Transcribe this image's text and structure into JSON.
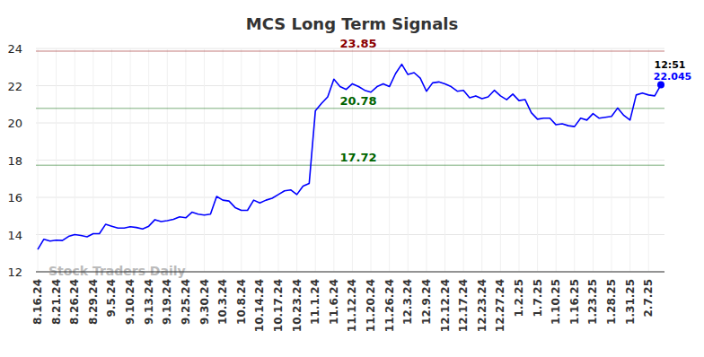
{
  "chart_data": {
    "type": "line",
    "title": "MCS Long Term Signals",
    "watermark": "Stock Traders Daily",
    "categories": [
      "8.16.24",
      null,
      null,
      "8.21.24",
      null,
      null,
      "8.26.24",
      null,
      null,
      "8.29.24",
      null,
      null,
      "9.5.24",
      null,
      null,
      "9.10.24",
      null,
      null,
      "9.13.24",
      null,
      null,
      "9.19.24",
      null,
      null,
      "9.25.24",
      null,
      null,
      "9.30.24",
      null,
      null,
      "10.3.24",
      null,
      null,
      "10.8.24",
      null,
      null,
      "10.14.24",
      null,
      null,
      "10.17.24",
      null,
      null,
      "10.23.24",
      null,
      null,
      "11.1.24",
      null,
      null,
      "11.6.24",
      null,
      null,
      "11.12.24",
      null,
      null,
      "11.20.24",
      null,
      null,
      "11.26.24",
      null,
      null,
      "12.3.24",
      null,
      null,
      "12.9.24",
      null,
      null,
      "12.12.24",
      null,
      null,
      "12.17.24",
      null,
      null,
      "12.23.24",
      null,
      null,
      "12.27.24",
      null,
      null,
      "1.2.25",
      null,
      null,
      "1.7.25",
      null,
      null,
      "1.10.25",
      null,
      null,
      "1.16.25",
      null,
      null,
      "1.23.25",
      null,
      null,
      "1.28.25",
      null,
      null,
      "1.31.25",
      null,
      null,
      "2.7.25",
      null,
      null
    ],
    "series": [
      {
        "color": "#0000ff",
        "values": [
          13.2,
          13.75,
          13.65,
          13.7,
          13.68,
          13.9,
          14.0,
          13.95,
          13.88,
          14.05,
          14.05,
          14.55,
          14.45,
          14.35,
          14.35,
          14.42,
          14.38,
          14.3,
          14.45,
          14.8,
          14.7,
          14.75,
          14.82,
          14.95,
          14.9,
          15.2,
          15.1,
          15.05,
          15.1,
          16.05,
          15.85,
          15.8,
          15.45,
          15.3,
          15.3,
          15.85,
          15.7,
          15.85,
          15.95,
          16.15,
          16.35,
          16.4,
          16.15,
          16.6,
          16.75,
          20.65,
          21.05,
          21.4,
          22.35,
          21.95,
          21.8,
          22.1,
          21.95,
          21.75,
          21.65,
          21.95,
          22.1,
          21.95,
          22.65,
          23.15,
          22.6,
          22.7,
          22.4,
          21.7,
          22.15,
          22.2,
          22.1,
          21.95,
          21.7,
          21.75,
          21.35,
          21.45,
          21.3,
          21.4,
          21.75,
          21.45,
          21.25,
          21.55,
          21.2,
          21.25,
          20.55,
          20.2,
          20.25,
          20.25,
          19.9,
          19.95,
          19.85,
          19.8,
          20.25,
          20.15,
          20.5,
          20.25,
          20.3,
          20.35,
          20.8,
          20.4,
          20.15,
          21.5,
          21.6,
          21.5,
          21.45,
          22.045
        ]
      }
    ],
    "reference_lines": [
      {
        "value": 23.85,
        "color": "#8b0000"
      },
      {
        "value": 20.78,
        "color": "#006400"
      },
      {
        "value": 17.72,
        "color": "#006400"
      }
    ],
    "annotations": [
      {
        "text": "12:51"
      }
    ],
    "ylim": [
      12,
      24
    ],
    "yticks": [
      12,
      14,
      16,
      18,
      20,
      22,
      24
    ],
    "grid": true
  }
}
